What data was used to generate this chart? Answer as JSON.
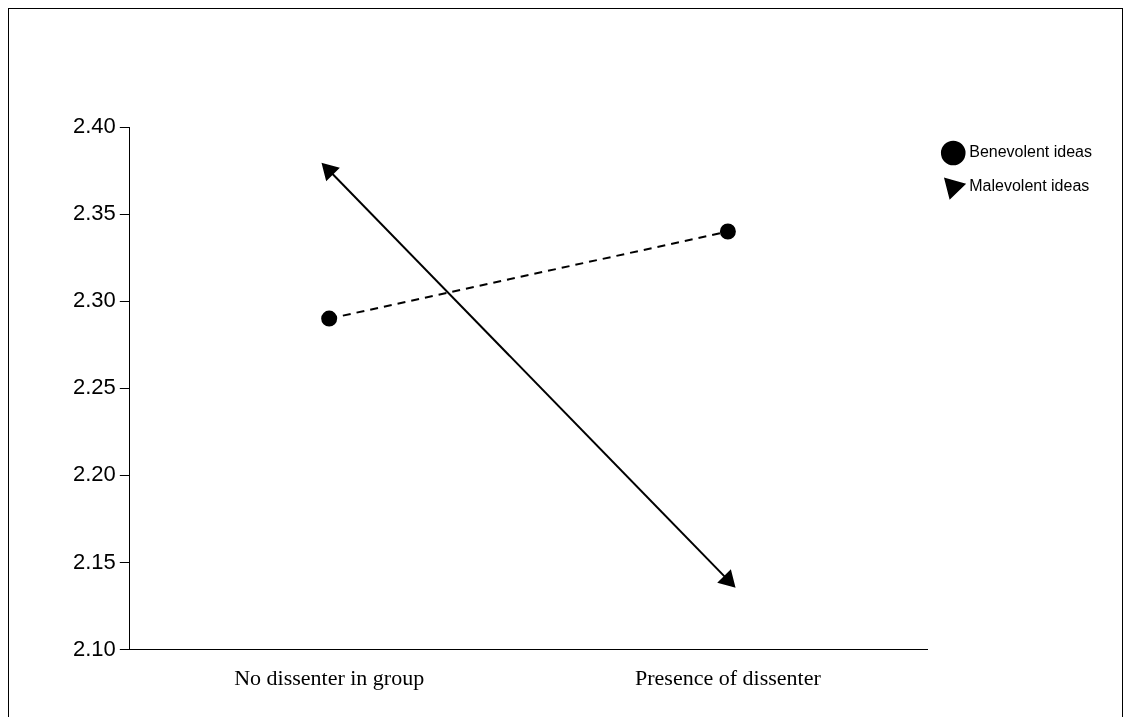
{
  "chart_data": {
    "type": "line",
    "categories": [
      "No dissenter in group",
      "Presence of dissenter"
    ],
    "series": [
      {
        "name": "Benevolent ideas",
        "color": "#000000",
        "values": [
          2.29,
          2.34
        ],
        "marker": "circle",
        "line_style": "dashed"
      },
      {
        "name": "Malevolent ideas",
        "color": "#000000",
        "values": [
          2.375,
          2.14
        ],
        "marker": "triangle",
        "line_style": "solid"
      }
    ],
    "ylim": [
      2.1,
      2.4
    ],
    "yticks": [
      {
        "value": 2.1,
        "label": "2.10"
      },
      {
        "value": 2.15,
        "label": "2.15"
      },
      {
        "value": 2.2,
        "label": "2.20"
      },
      {
        "value": 2.25,
        "label": "2.25"
      },
      {
        "value": 2.3,
        "label": "2.30"
      },
      {
        "value": 2.35,
        "label": "2.35"
      },
      {
        "value": 2.4,
        "label": "2.40"
      }
    ],
    "grid": false,
    "legend": "top right"
  }
}
